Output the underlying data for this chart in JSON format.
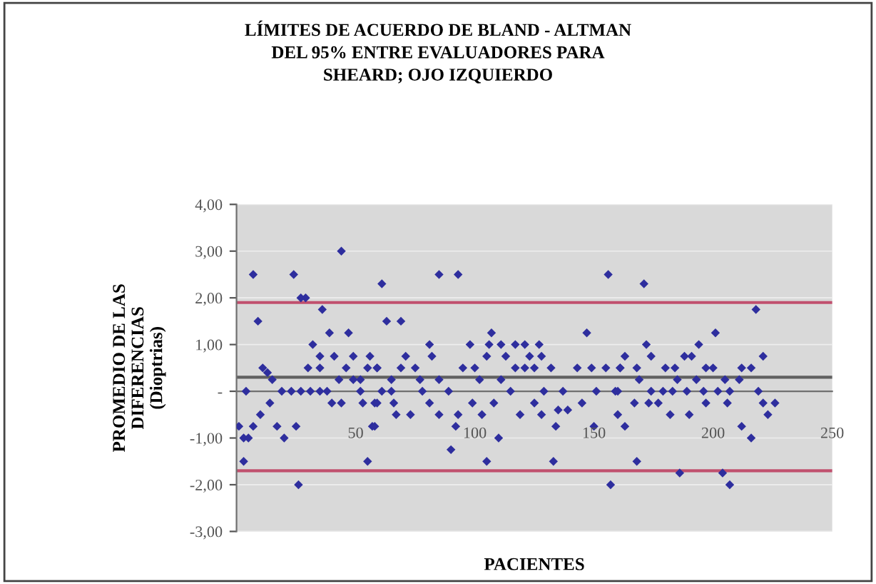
{
  "chart_data": {
    "type": "scatter",
    "title": "LÍMITES DE ACUERDO DE BLAND - ALTMAN\nDEL 95% ENTRE EVALUADORES PARA\nSHEARD; OJO IZQUIERDO",
    "xlabel": "PACIENTES",
    "ylabel": "PROMEDIO DE LAS\nDIFERENCIAS\n(Dioptrias)",
    "series": [
      {
        "color": "#2e2e9e",
        "x": [
          7,
          24,
          44,
          9,
          29,
          27,
          36,
          39,
          47,
          32,
          35,
          41,
          49,
          56,
          11,
          13,
          15,
          30,
          35,
          46,
          55,
          59,
          43,
          49,
          52,
          4,
          19,
          23,
          27,
          31,
          35,
          38,
          52,
          61,
          14,
          40,
          44,
          53,
          58,
          10,
          7,
          1,
          3,
          5,
          17,
          20,
          25,
          57,
          3,
          55,
          26,
          61,
          85,
          93,
          156,
          63,
          69,
          107,
          147,
          81,
          98,
          106,
          111,
          117,
          121,
          127,
          71,
          82,
          105,
          113,
          123,
          128,
          59,
          69,
          75,
          95,
          100,
          117,
          121,
          125,
          132,
          143,
          149,
          155,
          161,
          65,
          77,
          85,
          102,
          111,
          65,
          78,
          89,
          115,
          129,
          137,
          151,
          159,
          59,
          66,
          81,
          99,
          108,
          125,
          135,
          139,
          145,
          67,
          73,
          85,
          93,
          103,
          119,
          128,
          58,
          92,
          134,
          150,
          110,
          90,
          105,
          133,
          157,
          171,
          218,
          201,
          172,
          194,
          163,
          174,
          188,
          191,
          221,
          161,
          168,
          180,
          184,
          197,
          200,
          212,
          216,
          169,
          185,
          193,
          205,
          211,
          160,
          174,
          179,
          183,
          189,
          196,
          202,
          207,
          219,
          167,
          173,
          177,
          197,
          206,
          221,
          226,
          160,
          182,
          190,
          223,
          163,
          212,
          216,
          168,
          186,
          204,
          207
        ],
        "values": [
          2.5,
          2.5,
          3.0,
          1.5,
          2.0,
          2.0,
          1.75,
          1.25,
          1.25,
          1.0,
          0.75,
          0.75,
          0.75,
          0.75,
          0.5,
          0.4,
          0.25,
          0.5,
          0.5,
          0.5,
          0.5,
          0.5,
          0.25,
          0.25,
          0.25,
          0,
          0,
          0,
          0,
          0,
          0,
          0,
          0,
          0,
          -0.25,
          -0.25,
          -0.25,
          -0.25,
          -0.25,
          -0.5,
          -0.75,
          -0.75,
          -1.0,
          -1.0,
          -0.75,
          -1.0,
          -0.75,
          -0.75,
          -1.5,
          -1.5,
          -2.0,
          2.3,
          2.5,
          2.5,
          2.5,
          1.5,
          1.5,
          1.25,
          1.25,
          1.0,
          1.0,
          1.0,
          1.0,
          1.0,
          1.0,
          1.0,
          0.75,
          0.75,
          0.75,
          0.75,
          0.75,
          0.75,
          0.5,
          0.5,
          0.5,
          0.5,
          0.5,
          0.5,
          0.5,
          0.5,
          0.5,
          0.5,
          0.5,
          0.5,
          0.5,
          0.25,
          0.25,
          0.25,
          0.25,
          0.25,
          0,
          0,
          0,
          0,
          0,
          0,
          0,
          0,
          -0.25,
          -0.25,
          -0.25,
          -0.25,
          -0.25,
          -0.25,
          -0.4,
          -0.4,
          -0.25,
          -0.5,
          -0.5,
          -0.5,
          -0.5,
          -0.5,
          -0.5,
          -0.5,
          -0.75,
          -0.75,
          -0.75,
          -0.75,
          -1.0,
          -1.25,
          -1.5,
          -1.5,
          -2.0,
          2.3,
          1.75,
          1.25,
          1.0,
          1.0,
          0.75,
          0.75,
          0.75,
          0.75,
          0.75,
          0.5,
          0.5,
          0.5,
          0.5,
          0.5,
          0.5,
          0.5,
          0.5,
          0.25,
          0.25,
          0.25,
          0.25,
          0.25,
          0,
          0,
          0,
          0,
          0,
          0,
          0,
          0,
          0,
          -0.25,
          -0.25,
          -0.25,
          -0.25,
          -0.25,
          -0.25,
          -0.25,
          -0.5,
          -0.5,
          -0.5,
          -0.5,
          -0.75,
          -0.75,
          -1.0,
          -1.5,
          -1.75,
          -1.75,
          -2.0
        ]
      }
    ],
    "marker": "diamond",
    "grid": "y",
    "legend": false,
    "xlim": [
      0,
      250
    ],
    "xticks": [
      50,
      100,
      150,
      200,
      250
    ],
    "ylim": [
      -3,
      4
    ],
    "yticks": [
      {
        "value": -3,
        "label": "-3,00"
      },
      {
        "value": -2,
        "label": "-2,00"
      },
      {
        "value": -1,
        "label": "-1,00"
      },
      {
        "value": 0,
        "label": "-"
      },
      {
        "value": 1,
        "label": "1,00"
      },
      {
        "value": 2,
        "label": "2,00"
      },
      {
        "value": 3,
        "label": "3,00"
      },
      {
        "value": 4,
        "label": "4,00"
      }
    ],
    "ref_lines": [
      {
        "axis": "y",
        "value": 1.9,
        "color": "#c0506e"
      },
      {
        "axis": "y",
        "value": -1.7,
        "color": "#c0506e"
      },
      {
        "axis": "y",
        "value": 0.3,
        "color": "#606060"
      }
    ]
  }
}
